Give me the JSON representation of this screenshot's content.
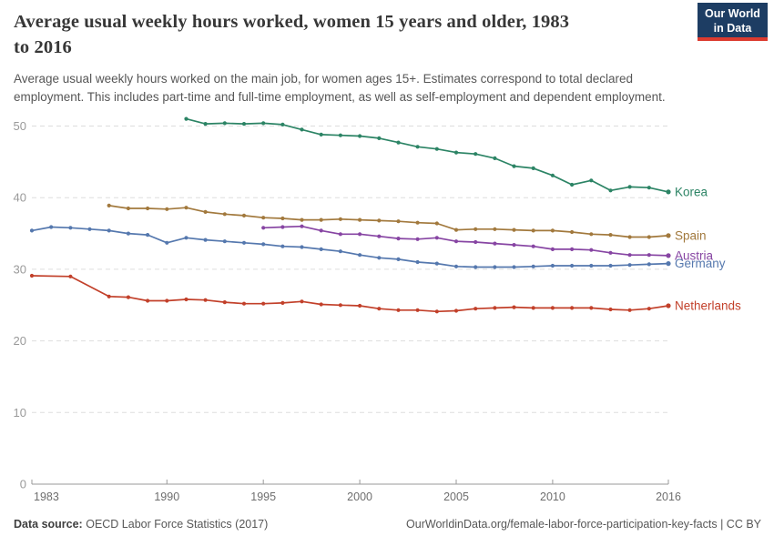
{
  "header": {
    "title_line1": "Average usual weekly hours worked, women 15 years and older, 1983",
    "title_line2": "to 2016",
    "subtitle_line1": "Average usual weekly hours worked on the main job, for women ages 15+. Estimates correspond to total declared",
    "subtitle_line2": "employment. This includes part-time and full-time employment, as well as self-employment and dependent employment.",
    "logo_line1": "Our World",
    "logo_line2": "in Data",
    "logo_bg_color": "#1D3D63",
    "logo_stripe_color": "#DC3B2F"
  },
  "footer": {
    "data_source_label": "Data source:",
    "data_source_value": "OECD Labor Force Statistics (2017)",
    "right_text": "OurWorldinData.org/female-labor-force-participation-key-facts | CC BY"
  },
  "chart_data": {
    "type": "line",
    "title": "Average usual weekly hours worked, women 15 years and older, 1983 to 2016",
    "xlabel": "",
    "ylabel": "",
    "x_ticks": [
      1983,
      1990,
      1995,
      2000,
      2005,
      2010,
      2016
    ],
    "y_ticks": [
      0,
      10,
      20,
      30,
      40,
      50
    ],
    "xlim": [
      1983,
      2016
    ],
    "ylim": [
      0,
      53
    ],
    "grid": "horizontal-dashed",
    "legend_position": "line-end-labels",
    "axis_color": "#999999",
    "gridline_color": "#dddddd",
    "series": [
      {
        "name": "Korea",
        "color": "#2C8465",
        "points": [
          [
            1991,
            51.0
          ],
          [
            1992,
            50.3
          ],
          [
            1993,
            50.4
          ],
          [
            1994,
            50.3
          ],
          [
            1995,
            50.4
          ],
          [
            1996,
            50.2
          ],
          [
            1997,
            49.5
          ],
          [
            1998,
            48.8
          ],
          [
            1999,
            48.7
          ],
          [
            2000,
            48.6
          ],
          [
            2001,
            48.3
          ],
          [
            2002,
            47.7
          ],
          [
            2003,
            47.1
          ],
          [
            2004,
            46.8
          ],
          [
            2005,
            46.3
          ],
          [
            2006,
            46.1
          ],
          [
            2007,
            45.5
          ],
          [
            2008,
            44.4
          ],
          [
            2009,
            44.1
          ],
          [
            2010,
            43.1
          ],
          [
            2011,
            41.8
          ],
          [
            2012,
            42.4
          ],
          [
            2013,
            41.0
          ],
          [
            2014,
            41.5
          ],
          [
            2015,
            41.4
          ],
          [
            2016,
            40.8
          ]
        ]
      },
      {
        "name": "Spain",
        "color": "#A2793D",
        "points": [
          [
            1987,
            38.9
          ],
          [
            1988,
            38.5
          ],
          [
            1989,
            38.5
          ],
          [
            1990,
            38.4
          ],
          [
            1991,
            38.6
          ],
          [
            1992,
            38.0
          ],
          [
            1993,
            37.7
          ],
          [
            1994,
            37.5
          ],
          [
            1995,
            37.2
          ],
          [
            1996,
            37.1
          ],
          [
            1997,
            36.9
          ],
          [
            1998,
            36.9
          ],
          [
            1999,
            37.0
          ],
          [
            2000,
            36.9
          ],
          [
            2001,
            36.8
          ],
          [
            2002,
            36.7
          ],
          [
            2003,
            36.5
          ],
          [
            2004,
            36.4
          ],
          [
            2005,
            35.5
          ],
          [
            2006,
            35.6
          ],
          [
            2007,
            35.6
          ],
          [
            2008,
            35.5
          ],
          [
            2009,
            35.4
          ],
          [
            2010,
            35.4
          ],
          [
            2011,
            35.2
          ],
          [
            2012,
            34.9
          ],
          [
            2013,
            34.8
          ],
          [
            2014,
            34.5
          ],
          [
            2015,
            34.5
          ],
          [
            2016,
            34.7
          ]
        ]
      },
      {
        "name": "Austria",
        "color": "#8745A3",
        "points": [
          [
            1995,
            35.8
          ],
          [
            1996,
            35.9
          ],
          [
            1997,
            36.0
          ],
          [
            1998,
            35.4
          ],
          [
            1999,
            34.9
          ],
          [
            2000,
            34.9
          ],
          [
            2001,
            34.6
          ],
          [
            2002,
            34.3
          ],
          [
            2003,
            34.2
          ],
          [
            2004,
            34.4
          ],
          [
            2005,
            33.9
          ],
          [
            2006,
            33.8
          ],
          [
            2007,
            33.6
          ],
          [
            2008,
            33.4
          ],
          [
            2009,
            33.2
          ],
          [
            2010,
            32.8
          ],
          [
            2011,
            32.8
          ],
          [
            2012,
            32.7
          ],
          [
            2013,
            32.3
          ],
          [
            2014,
            32.0
          ],
          [
            2015,
            32.0
          ],
          [
            2016,
            31.9
          ]
        ]
      },
      {
        "name": "Germany",
        "color": "#5578AE",
        "points": [
          [
            1983,
            35.4
          ],
          [
            1984,
            35.9
          ],
          [
            1985,
            35.8
          ],
          [
            1986,
            35.6
          ],
          [
            1987,
            35.4
          ],
          [
            1988,
            35.0
          ],
          [
            1989,
            34.8
          ],
          [
            1990,
            33.7
          ],
          [
            1991,
            34.4
          ],
          [
            1992,
            34.1
          ],
          [
            1993,
            33.9
          ],
          [
            1994,
            33.7
          ],
          [
            1995,
            33.5
          ],
          [
            1996,
            33.2
          ],
          [
            1997,
            33.1
          ],
          [
            1998,
            32.8
          ],
          [
            1999,
            32.5
          ],
          [
            2000,
            32.0
          ],
          [
            2001,
            31.6
          ],
          [
            2002,
            31.4
          ],
          [
            2003,
            31.0
          ],
          [
            2004,
            30.8
          ],
          [
            2005,
            30.4
          ],
          [
            2006,
            30.3
          ],
          [
            2007,
            30.3
          ],
          [
            2008,
            30.3
          ],
          [
            2009,
            30.4
          ],
          [
            2010,
            30.5
          ],
          [
            2011,
            30.5
          ],
          [
            2012,
            30.5
          ],
          [
            2013,
            30.5
          ],
          [
            2014,
            30.6
          ],
          [
            2015,
            30.7
          ],
          [
            2016,
            30.8
          ]
        ]
      },
      {
        "name": "Netherlands",
        "color": "#C2402A",
        "points": [
          [
            1983,
            29.1
          ],
          [
            1985,
            29.0
          ],
          [
            1987,
            26.2
          ],
          [
            1988,
            26.1
          ],
          [
            1989,
            25.6
          ],
          [
            1990,
            25.6
          ],
          [
            1991,
            25.8
          ],
          [
            1992,
            25.7
          ],
          [
            1993,
            25.4
          ],
          [
            1994,
            25.2
          ],
          [
            1995,
            25.2
          ],
          [
            1996,
            25.3
          ],
          [
            1997,
            25.5
          ],
          [
            1998,
            25.1
          ],
          [
            1999,
            25.0
          ],
          [
            2000,
            24.9
          ],
          [
            2001,
            24.5
          ],
          [
            2002,
            24.3
          ],
          [
            2003,
            24.3
          ],
          [
            2004,
            24.1
          ],
          [
            2005,
            24.2
          ],
          [
            2006,
            24.5
          ],
          [
            2007,
            24.6
          ],
          [
            2008,
            24.7
          ],
          [
            2009,
            24.6
          ],
          [
            2010,
            24.6
          ],
          [
            2011,
            24.6
          ],
          [
            2012,
            24.6
          ],
          [
            2013,
            24.4
          ],
          [
            2014,
            24.3
          ],
          [
            2015,
            24.5
          ],
          [
            2016,
            24.9
          ]
        ]
      }
    ]
  }
}
